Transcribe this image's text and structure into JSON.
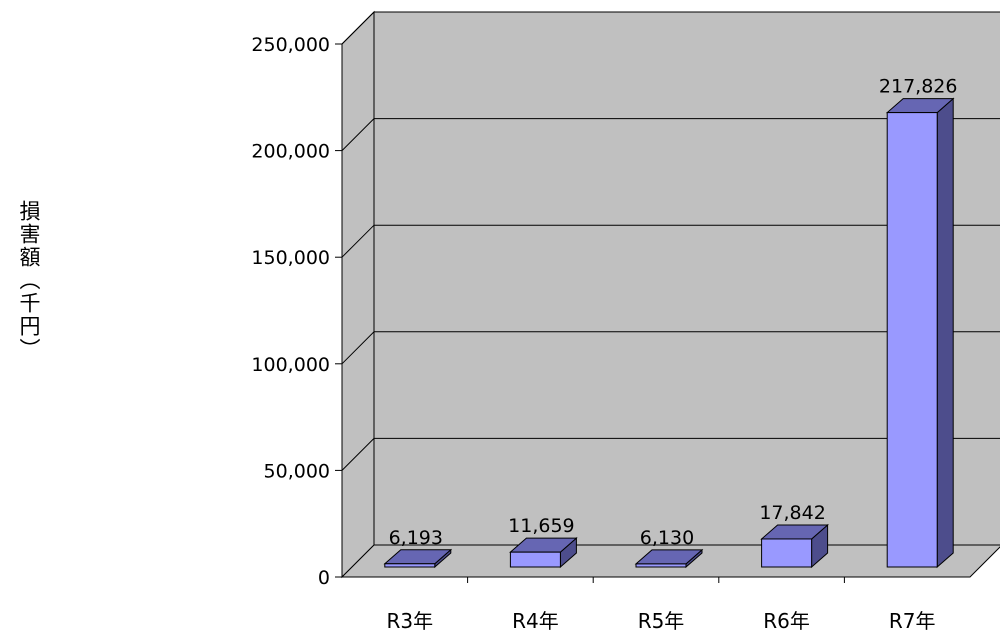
{
  "chart_data": {
    "type": "bar",
    "categories": [
      "R3年",
      "R4年",
      "R5年",
      "R6年",
      "R7年"
    ],
    "series": [
      {
        "values": [
          6193,
          11659,
          6130,
          17842,
          217826
        ],
        "color": "#9999ff",
        "side_color": "#4d4d8c",
        "top_color": "#6666b3"
      }
    ],
    "value_labels": [
      "6,193",
      "11,659",
      "6,130",
      "17,842",
      "217,826"
    ],
    "ylabel": "損害額（千円）",
    "ylim": [
      0,
      250000
    ],
    "yticks": [
      0,
      50000,
      100000,
      150000,
      200000,
      250000
    ],
    "ytick_labels": [
      "0",
      "50,000",
      "100,000",
      "150,000",
      "200,000",
      "250,000"
    ],
    "grid": true,
    "legend": "none",
    "wall_color": "#c0c0c0"
  }
}
